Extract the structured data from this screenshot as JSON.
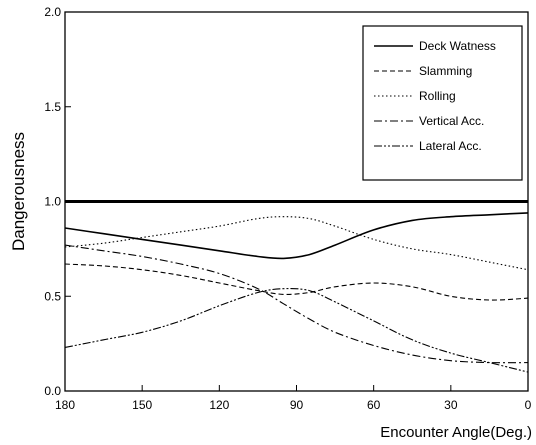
{
  "chart_data": {
    "type": "line",
    "title": "",
    "xlabel": "Encounter Angle(Deg.)",
    "ylabel": "Dangerousness",
    "xlim": [
      180,
      0
    ],
    "ylim": [
      0.0,
      2.0
    ],
    "x_ticks": [
      180,
      150,
      120,
      90,
      60,
      30,
      0
    ],
    "y_ticks": [
      0.0,
      0.5,
      1.0,
      1.5,
      2.0
    ],
    "y_tick_labels": [
      "0.0",
      "0.5",
      "1.0",
      "1.5",
      "2.0"
    ],
    "grid": false,
    "legend_position": "top-right",
    "reference_line": {
      "y": 1.0
    },
    "series": [
      {
        "name": "Deck Watness",
        "dash": "solid",
        "x": [
          180,
          165,
          150,
          135,
          120,
          105,
          95,
          85,
          75,
          60,
          45,
          30,
          15,
          0
        ],
        "y": [
          0.86,
          0.83,
          0.8,
          0.77,
          0.74,
          0.71,
          0.7,
          0.72,
          0.77,
          0.85,
          0.9,
          0.92,
          0.93,
          0.94
        ]
      },
      {
        "name": "Slamming",
        "dash": "dash",
        "x": [
          180,
          165,
          150,
          135,
          120,
          105,
          95,
          85,
          75,
          60,
          45,
          30,
          15,
          0
        ],
        "y": [
          0.67,
          0.66,
          0.64,
          0.61,
          0.57,
          0.53,
          0.51,
          0.52,
          0.55,
          0.57,
          0.55,
          0.5,
          0.48,
          0.49
        ]
      },
      {
        "name": "Rolling",
        "dash": "dot",
        "x": [
          180,
          165,
          150,
          135,
          120,
          105,
          95,
          85,
          75,
          60,
          45,
          30,
          15,
          0
        ],
        "y": [
          0.76,
          0.78,
          0.81,
          0.84,
          0.87,
          0.91,
          0.92,
          0.91,
          0.87,
          0.8,
          0.75,
          0.72,
          0.68,
          0.64
        ]
      },
      {
        "name": "Vertical Acc.",
        "dash": "dashdot",
        "x": [
          180,
          165,
          150,
          135,
          120,
          105,
          95,
          85,
          75,
          60,
          45,
          30,
          15,
          0
        ],
        "y": [
          0.77,
          0.74,
          0.71,
          0.67,
          0.62,
          0.54,
          0.46,
          0.38,
          0.31,
          0.24,
          0.19,
          0.16,
          0.15,
          0.15
        ]
      },
      {
        "name": "Lateral Acc.",
        "dash": "dashdotdot",
        "x": [
          180,
          165,
          150,
          135,
          120,
          105,
          95,
          85,
          75,
          60,
          45,
          30,
          15,
          0
        ],
        "y": [
          0.23,
          0.27,
          0.31,
          0.37,
          0.45,
          0.52,
          0.54,
          0.53,
          0.47,
          0.37,
          0.27,
          0.2,
          0.15,
          0.1
        ]
      }
    ]
  }
}
